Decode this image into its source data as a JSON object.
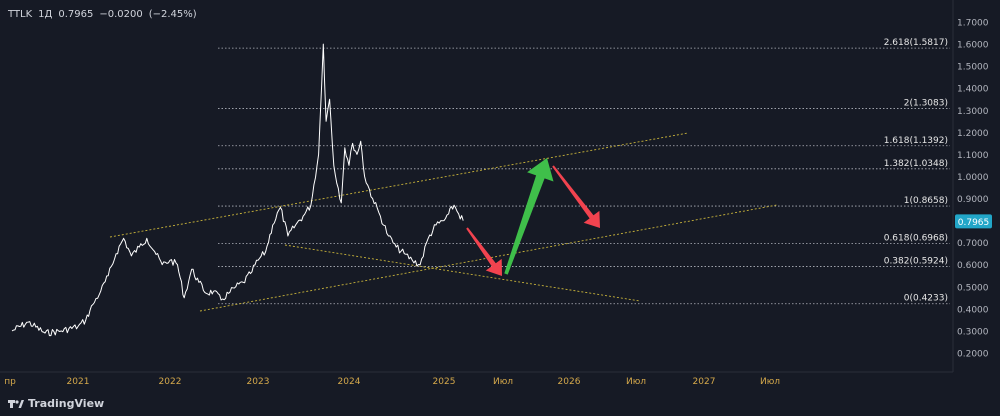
{
  "header": {
    "symbol": "TTLK",
    "interval": "1Д",
    "price": "0.7965",
    "change": "−0.0200",
    "change_pct": "(−2.45%)"
  },
  "footer": {
    "brand": "TradingView"
  },
  "colors": {
    "background": "#161a25",
    "price_line": "#ffffff",
    "fib_line": "#b2b5be",
    "trend_line": "#c9b43a",
    "arrow_up": "#3fbf4a",
    "arrow_down": "#f2434f",
    "price_badge": "#22a6c8",
    "axis_text": "#b2b5be",
    "x_axis_text": "#d4a84b"
  },
  "chart_data": {
    "type": "line",
    "title": "",
    "xlabel": "",
    "ylabel": "",
    "ylim": [
      0.15,
      1.72
    ],
    "y_ticks": [
      "1.7000",
      "1.6000",
      "1.5000",
      "1.4000",
      "1.3000",
      "1.2000",
      "1.1000",
      "1.0000",
      "0.9000",
      "0.8000",
      "0.7000",
      "0.6000",
      "0.5000",
      "0.4000",
      "0.3000",
      "0.2000"
    ],
    "x_ticks": [
      "пр",
      "2021",
      "2022",
      "2023",
      "2024",
      "2025",
      "Июл",
      "2026",
      "Июл",
      "2027",
      "Июл"
    ],
    "current_price_label": "0.7965",
    "fib_levels": [
      {
        "label": "2.618(1.5817)",
        "value": 1.5817
      },
      {
        "label": "2(1.3083)",
        "value": 1.3083
      },
      {
        "label": "1.618(1.1392)",
        "value": 1.1392
      },
      {
        "label": "1.382(1.0348)",
        "value": 1.0348
      },
      {
        "label": "1(0.8658)",
        "value": 0.8658
      },
      {
        "label": "0.618(0.6968)",
        "value": 0.6968
      },
      {
        "label": "0.382(0.5924)",
        "value": 0.5924
      },
      {
        "label": "0(0.4233)",
        "value": 0.4233
      }
    ],
    "series": [
      {
        "x": [
          "2020-09-01",
          "2020-10-01",
          "2020-11-01",
          "2020-12-01",
          "2021-01-01",
          "2021-02-01",
          "2021-03-01",
          "2021-04-01",
          "2021-05-01",
          "2021-06-01",
          "2021-07-01",
          "2021-08-01",
          "2021-09-01",
          "2021-10-01",
          "2021-11-01",
          "2021-12-01",
          "2022-01-01",
          "2022-02-01",
          "2022-03-01",
          "2022-04-01",
          "2022-05-01",
          "2022-06-01",
          "2022-07-01",
          "2022-08-01",
          "2022-09-01",
          "2022-10-01",
          "2022-11-01",
          "2022-12-01",
          "2023-01-01",
          "2023-02-01",
          "2023-03-01",
          "2023-04-01",
          "2023-05-01",
          "2023-06-01",
          "2023-07-01",
          "2023-08-01",
          "2023-09-01",
          "2023-09-20",
          "2023-10-01",
          "2023-10-15",
          "2023-11-01",
          "2023-12-01",
          "2023-12-15",
          "2024-01-01",
          "2024-01-15",
          "2024-02-01",
          "2024-02-15",
          "2024-03-01",
          "2024-04-01",
          "2024-05-01",
          "2024-06-01",
          "2024-07-01",
          "2024-08-01",
          "2024-09-01",
          "2024-10-01",
          "2024-11-01",
          "2024-12-01",
          "2025-01-01",
          "2025-01-15",
          "2025-02-01",
          "2025-02-15",
          "2025-03-01"
        ],
        "values": [
          0.3,
          0.34,
          0.29,
          0.3,
          0.32,
          0.35,
          0.42,
          0.48,
          0.55,
          0.65,
          0.72,
          0.64,
          0.68,
          0.72,
          0.66,
          0.6,
          0.62,
          0.6,
          0.45,
          0.58,
          0.52,
          0.47,
          0.48,
          0.44,
          0.47,
          0.5,
          0.52,
          0.56,
          0.62,
          0.66,
          0.78,
          0.86,
          0.73,
          0.78,
          0.82,
          0.87,
          1.1,
          1.6,
          1.25,
          1.35,
          1.05,
          0.88,
          1.13,
          1.05,
          1.15,
          1.1,
          1.16,
          1.0,
          0.9,
          0.82,
          0.73,
          0.68,
          0.65,
          0.62,
          0.6,
          0.72,
          0.78,
          0.8,
          0.83,
          0.87,
          0.83,
          0.8
        ]
      }
    ]
  }
}
